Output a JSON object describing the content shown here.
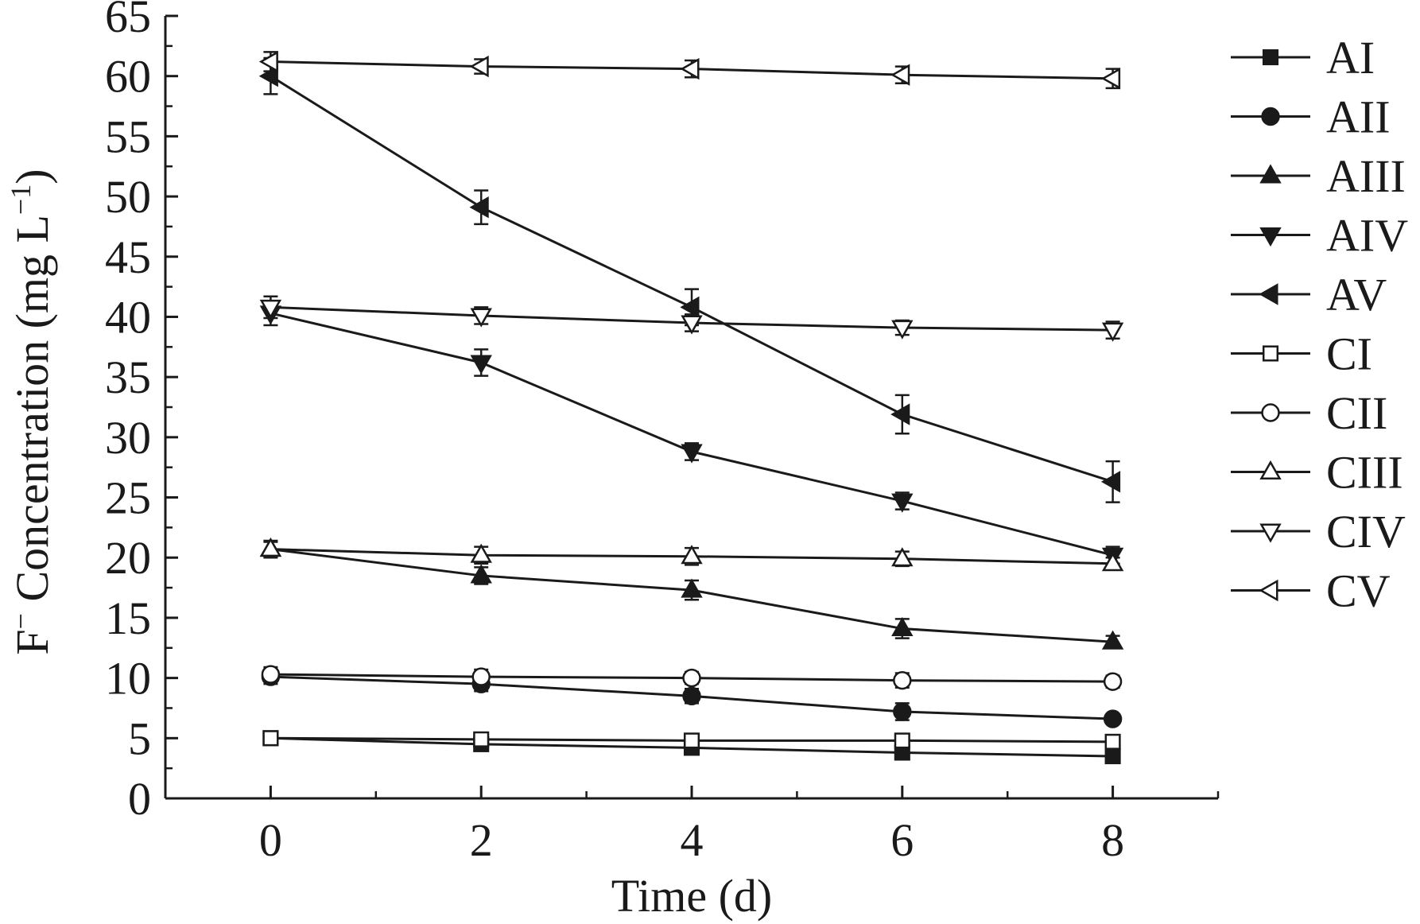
{
  "chart_data": {
    "type": "line",
    "title": "",
    "xlabel": "Time (d)",
    "ylabel_main": "F",
    "ylabel_sup": "−",
    "ylabel_rest": " Concentration (mg L",
    "ylabel_unit_sup": "−1",
    "ylabel_close": ")",
    "xlim": [
      -1,
      9
    ],
    "ylim": [
      0,
      65
    ],
    "x_ticks": [
      0,
      2,
      4,
      6,
      8
    ],
    "y_ticks": [
      0,
      5,
      10,
      15,
      20,
      25,
      30,
      35,
      40,
      45,
      50,
      55,
      60,
      65
    ],
    "grid": false,
    "legend_position": "right",
    "x": [
      0,
      2,
      4,
      6,
      8
    ],
    "series": [
      {
        "name": "AI",
        "marker": "square",
        "filled": true,
        "values": [
          5.0,
          4.5,
          4.2,
          3.8,
          3.5
        ],
        "errors": [
          0.3,
          0.3,
          0.3,
          0.3,
          0.3
        ]
      },
      {
        "name": "AII",
        "marker": "circle",
        "filled": true,
        "values": [
          10.1,
          9.5,
          8.5,
          7.2,
          6.6
        ],
        "errors": [
          0.6,
          0.6,
          0.6,
          0.7,
          0.4
        ]
      },
      {
        "name": "AIII",
        "marker": "triangle-up",
        "filled": true,
        "values": [
          20.7,
          18.5,
          17.3,
          14.1,
          13.0
        ],
        "errors": [
          0.6,
          0.7,
          0.8,
          0.8,
          0.5
        ]
      },
      {
        "name": "AIV",
        "marker": "triangle-down",
        "filled": true,
        "values": [
          40.3,
          36.2,
          28.8,
          24.7,
          20.2
        ],
        "errors": [
          1.0,
          1.1,
          0.7,
          0.7,
          0.7
        ]
      },
      {
        "name": "AV",
        "marker": "triangle-left",
        "filled": true,
        "values": [
          60.0,
          49.1,
          40.8,
          31.9,
          26.3
        ],
        "errors": [
          1.5,
          1.4,
          1.5,
          1.6,
          1.7
        ]
      },
      {
        "name": "CI",
        "marker": "square",
        "filled": false,
        "values": [
          5.0,
          4.9,
          4.8,
          4.8,
          4.7
        ],
        "errors": [
          0.3,
          0.3,
          0.3,
          0.3,
          0.3
        ]
      },
      {
        "name": "CII",
        "marker": "circle",
        "filled": false,
        "values": [
          10.3,
          10.1,
          10.0,
          9.8,
          9.7
        ],
        "errors": [
          0.6,
          0.6,
          0.5,
          0.6,
          0.5
        ]
      },
      {
        "name": "CIII",
        "marker": "triangle-up",
        "filled": false,
        "values": [
          20.7,
          20.2,
          20.1,
          19.9,
          19.5
        ],
        "errors": [
          0.7,
          0.7,
          0.7,
          0.6,
          0.5
        ]
      },
      {
        "name": "CIV",
        "marker": "triangle-down",
        "filled": false,
        "values": [
          40.8,
          40.1,
          39.5,
          39.1,
          38.9
        ],
        "errors": [
          0.9,
          0.7,
          0.7,
          0.6,
          0.7
        ]
      },
      {
        "name": "CV",
        "marker": "triangle-left",
        "filled": false,
        "values": [
          61.2,
          60.8,
          60.6,
          60.1,
          59.8
        ],
        "errors": [
          0.8,
          0.6,
          0.7,
          0.7,
          0.8
        ]
      }
    ]
  }
}
